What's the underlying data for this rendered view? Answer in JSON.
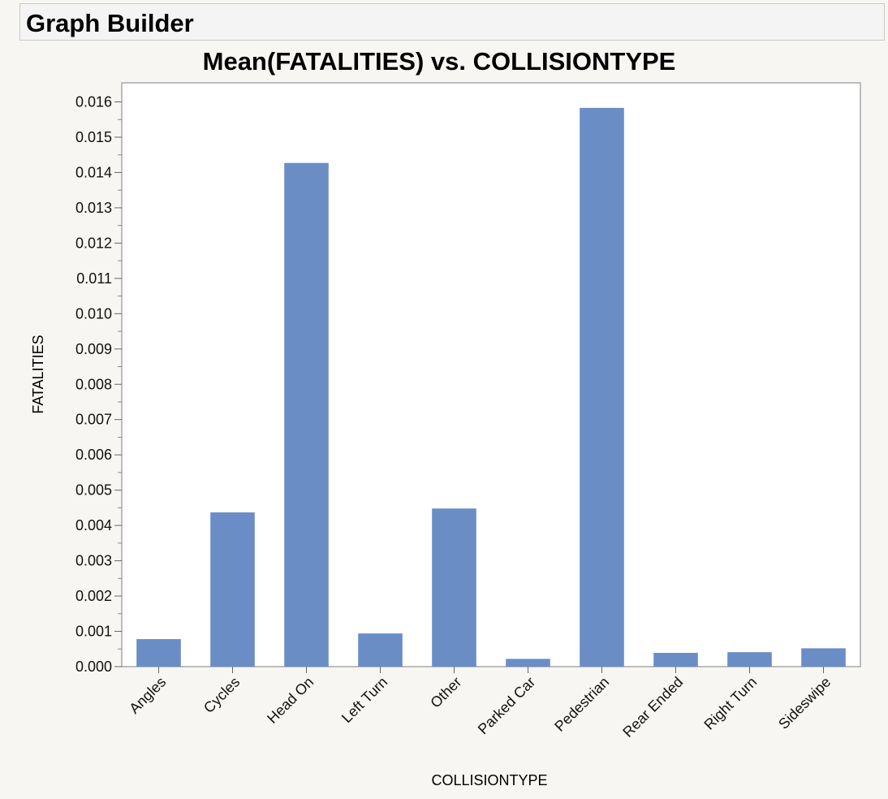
{
  "window": {
    "title": "Graph Builder"
  },
  "colors": {
    "bar": "#6a8dc6",
    "plot_border": "#a8a8a8",
    "background": "#f7f6f3"
  },
  "chart_data": {
    "type": "bar",
    "title": "Mean(FATALITIES) vs. COLLISIONTYPE",
    "xlabel": "COLLISIONTYPE",
    "ylabel": "FATALITIES",
    "ylim": [
      0,
      0.016
    ],
    "yticks": [
      "0.000",
      "0.001",
      "0.002",
      "0.003",
      "0.004",
      "0.005",
      "0.006",
      "0.007",
      "0.008",
      "0.009",
      "0.010",
      "0.011",
      "0.012",
      "0.013",
      "0.014",
      "0.015",
      "0.016"
    ],
    "grid": false,
    "categories": [
      "Angles",
      "Cycles",
      "Head On",
      "Left Turn",
      "Other",
      "Parked Car",
      "Pedestrian",
      "Rear Ended",
      "Right Turn",
      "Sideswipe"
    ],
    "values": [
      0.00078,
      0.00437,
      0.01427,
      0.00094,
      0.00448,
      0.00022,
      0.01583,
      0.00039,
      0.00041,
      0.00052
    ]
  }
}
